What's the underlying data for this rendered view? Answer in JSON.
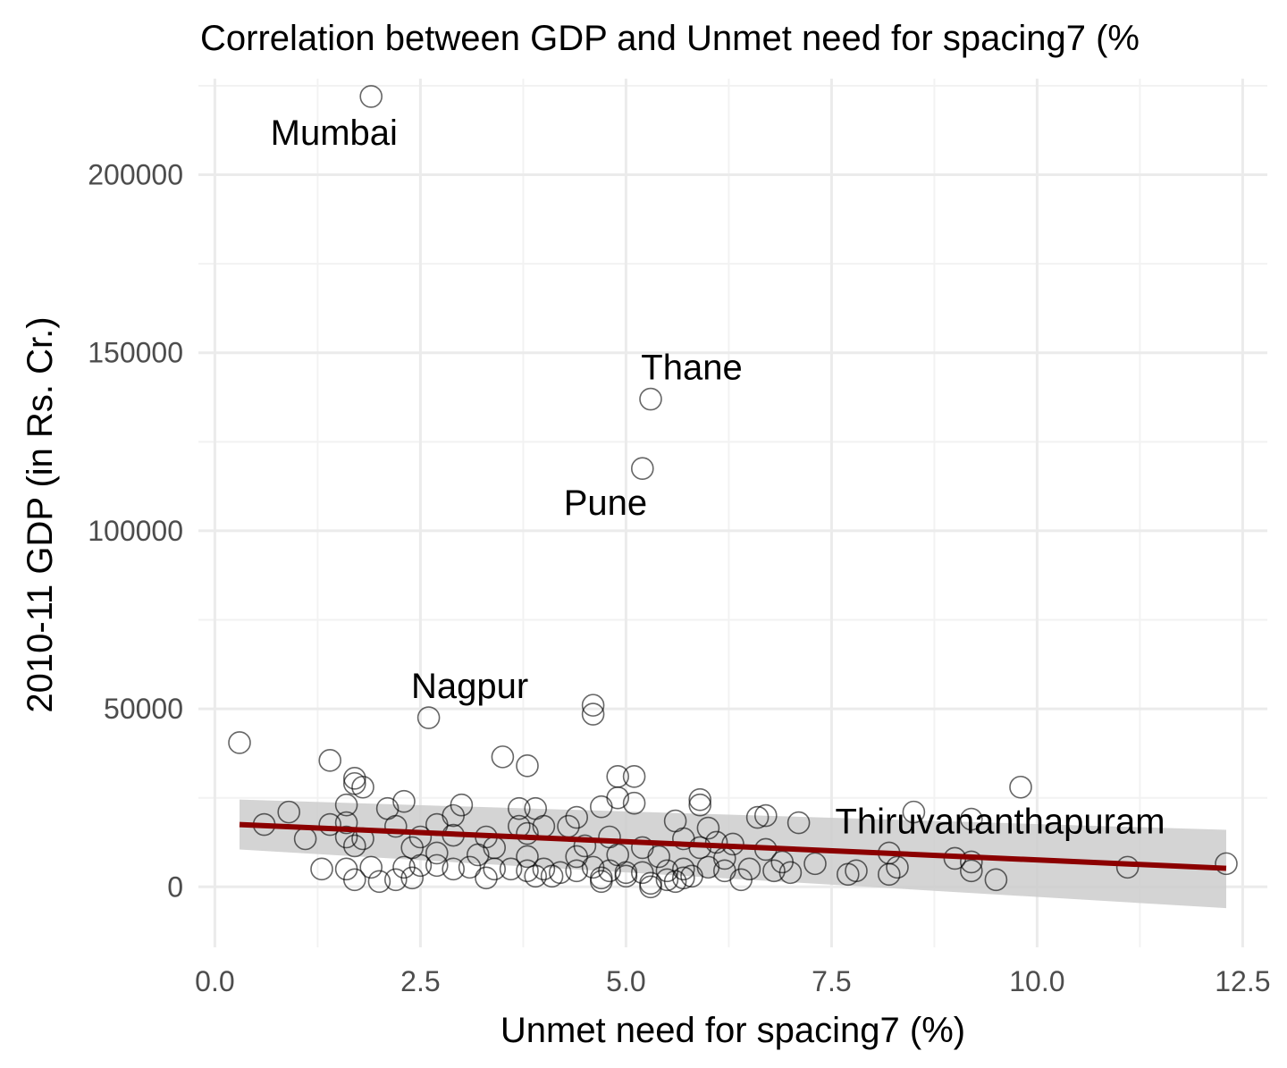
{
  "chart_data": {
    "type": "scatter",
    "title": "Correlation between GDP and Unmet need for spacing7 (%",
    "xlabel": "Unmet need for spacing7 (%)",
    "ylabel": "2010-11 GDP (in Rs. Cr.)",
    "xlim": [
      -0.2,
      12.8
    ],
    "ylim": [
      -17000,
      227000
    ],
    "x_ticks": [
      0.0,
      2.5,
      5.0,
      7.5,
      10.0,
      12.5
    ],
    "x_tick_labels": [
      "0.0",
      "2.5",
      "5.0",
      "7.5",
      "10.0",
      "12.5"
    ],
    "y_ticks": [
      0,
      50000,
      100000,
      150000,
      200000
    ],
    "y_tick_labels": [
      "0",
      "50000",
      "100000",
      "150000",
      "200000"
    ],
    "grid": true,
    "colors": {
      "point_stroke": "#000000",
      "trend_line": "#8b0000",
      "confidence_band": "#cccccc",
      "grid_major": "#ebebeb",
      "grid_minor": "#f2f2f2"
    },
    "trend": {
      "x": [
        0.3,
        12.3
      ],
      "y": [
        17500,
        5200
      ],
      "ci_lower": [
        10500,
        -6000
      ],
      "ci_upper": [
        24500,
        16000
      ]
    },
    "labels": [
      {
        "text": "Mumbai",
        "x": 1.45,
        "y": 212000
      },
      {
        "text": "Thane",
        "x": 5.8,
        "y": 146000
      },
      {
        "text": "Pune",
        "x": 4.75,
        "y": 108000
      },
      {
        "text": "Nagpur",
        "x": 3.1,
        "y": 56500
      },
      {
        "text": "Thiruvananthapuram",
        "x": 9.55,
        "y": 18500
      }
    ],
    "points": [
      [
        1.9,
        222000
      ],
      [
        5.3,
        137000
      ],
      [
        5.2,
        117500
      ],
      [
        2.6,
        47500
      ],
      [
        0.3,
        40500
      ],
      [
        4.6,
        51000
      ],
      [
        4.6,
        48500
      ],
      [
        1.4,
        35500
      ],
      [
        3.5,
        36500
      ],
      [
        3.8,
        34000
      ],
      [
        1.7,
        30500
      ],
      [
        1.7,
        29000
      ],
      [
        1.8,
        28000
      ],
      [
        4.9,
        31000
      ],
      [
        5.1,
        31000
      ],
      [
        9.8,
        28000
      ],
      [
        5.9,
        24500
      ],
      [
        5.9,
        23000
      ],
      [
        2.3,
        24000
      ],
      [
        3.0,
        23000
      ],
      [
        3.7,
        22000
      ],
      [
        3.9,
        22000
      ],
      [
        4.7,
        22500
      ],
      [
        4.9,
        25000
      ],
      [
        5.1,
        23500
      ],
      [
        2.1,
        22000
      ],
      [
        1.6,
        23000
      ],
      [
        0.9,
        21000
      ],
      [
        2.9,
        20000
      ],
      [
        4.4,
        19500
      ],
      [
        5.6,
        18500
      ],
      [
        6.0,
        16500
      ],
      [
        6.6,
        19500
      ],
      [
        6.7,
        20000
      ],
      [
        8.5,
        21000
      ],
      [
        9.2,
        19000
      ],
      [
        0.6,
        17500
      ],
      [
        1.4,
        17500
      ],
      [
        1.6,
        18000
      ],
      [
        2.2,
        17000
      ],
      [
        2.7,
        17500
      ],
      [
        3.7,
        17000
      ],
      [
        4.0,
        17000
      ],
      [
        4.3,
        17000
      ],
      [
        7.1,
        18000
      ],
      [
        1.1,
        13500
      ],
      [
        1.6,
        14000
      ],
      [
        1.8,
        13500
      ],
      [
        2.5,
        14000
      ],
      [
        3.3,
        14000
      ],
      [
        3.8,
        15000
      ],
      [
        4.8,
        14000
      ],
      [
        5.7,
        13500
      ],
      [
        6.1,
        12500
      ],
      [
        6.3,
        12000
      ],
      [
        2.9,
        14500
      ],
      [
        1.7,
        11500
      ],
      [
        2.4,
        11000
      ],
      [
        3.4,
        11000
      ],
      [
        4.5,
        11500
      ],
      [
        5.2,
        11000
      ],
      [
        5.9,
        11000
      ],
      [
        6.7,
        10500
      ],
      [
        8.2,
        9500
      ],
      [
        9.0,
        8000
      ],
      [
        2.7,
        9500
      ],
      [
        3.2,
        9000
      ],
      [
        3.8,
        8500
      ],
      [
        4.4,
        8500
      ],
      [
        4.9,
        9000
      ],
      [
        5.4,
        8500
      ],
      [
        6.2,
        8000
      ],
      [
        6.9,
        7000
      ],
      [
        7.3,
        6500
      ],
      [
        9.2,
        7000
      ],
      [
        1.3,
        5000
      ],
      [
        1.6,
        5000
      ],
      [
        1.9,
        5500
      ],
      [
        2.3,
        5500
      ],
      [
        2.5,
        6000
      ],
      [
        2.7,
        6000
      ],
      [
        2.9,
        5000
      ],
      [
        3.1,
        5500
      ],
      [
        3.4,
        5000
      ],
      [
        3.6,
        5000
      ],
      [
        3.8,
        4500
      ],
      [
        4.0,
        5000
      ],
      [
        4.2,
        4000
      ],
      [
        4.4,
        4500
      ],
      [
        4.6,
        5500
      ],
      [
        4.8,
        4500
      ],
      [
        5.0,
        4000
      ],
      [
        5.2,
        4000
      ],
      [
        5.5,
        4500
      ],
      [
        5.7,
        5000
      ],
      [
        6.0,
        5500
      ],
      [
        6.2,
        4500
      ],
      [
        6.5,
        5000
      ],
      [
        6.8,
        4500
      ],
      [
        7.0,
        4000
      ],
      [
        7.8,
        4500
      ],
      [
        8.3,
        5500
      ],
      [
        9.2,
        4500
      ],
      [
        11.1,
        5500
      ],
      [
        12.3,
        6500
      ],
      [
        1.7,
        2000
      ],
      [
        2.0,
        1500
      ],
      [
        2.2,
        2000
      ],
      [
        2.4,
        2500
      ],
      [
        3.3,
        2500
      ],
      [
        3.9,
        3000
      ],
      [
        4.1,
        3000
      ],
      [
        4.7,
        1500
      ],
      [
        5.0,
        3000
      ],
      [
        5.3,
        1000
      ],
      [
        5.5,
        2000
      ],
      [
        5.7,
        2500
      ],
      [
        6.4,
        2000
      ],
      [
        8.2,
        3500
      ],
      [
        9.5,
        2000
      ],
      [
        5.3,
        0
      ],
      [
        5.6,
        1500
      ],
      [
        5.8,
        3000
      ],
      [
        7.7,
        3500
      ],
      [
        4.7,
        2500
      ]
    ]
  }
}
